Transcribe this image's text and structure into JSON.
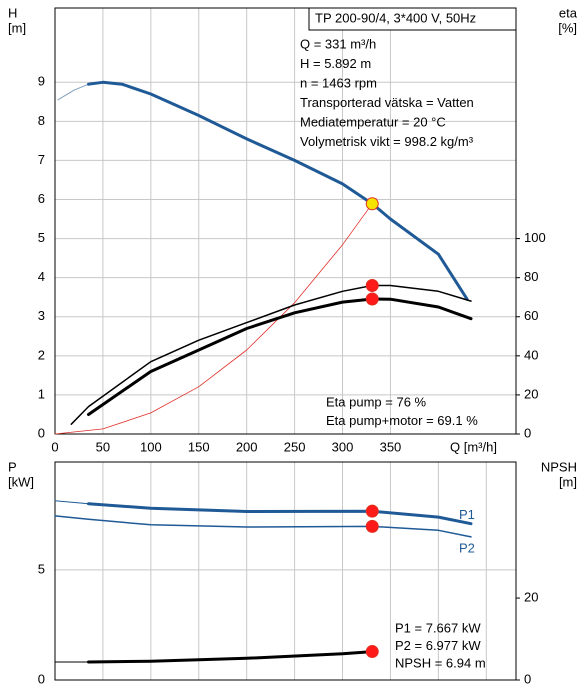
{
  "chart_data": [
    {
      "type": "line",
      "header": "TP 200-90/4, 3*400 V, 50Hz",
      "info": [
        "Q = 331 m³/h",
        "H = 5.892 m",
        "n = 1463 rpm",
        "Transporterad vätska = Vatten",
        "Mediatemperatur = 20 °C",
        "Volymetrisk vikt = 998.2 kg/m³"
      ],
      "notes": [
        "Eta pump = 76 %",
        "Eta pump+motor = 69.1 %"
      ],
      "ylabel": [
        "H",
        "[m]"
      ],
      "y2label": [
        "eta",
        "[%]"
      ],
      "xlabel": "Q [m³/h]",
      "xlim": [
        0,
        481
      ],
      "xticks": [
        0,
        50,
        100,
        150,
        200,
        250,
        300,
        350
      ],
      "show_xtick_labels": true,
      "ylim": [
        0,
        10.9
      ],
      "yticks": [
        0,
        1,
        2,
        3,
        4,
        5,
        6,
        7,
        8,
        9
      ],
      "y2lim": [
        0,
        218
      ],
      "y2ticks": [
        0,
        20,
        40,
        60,
        80,
        100
      ],
      "grid": true,
      "series": [
        {
          "style": "line",
          "color": "#7f9fbf",
          "width": 1,
          "x": [
            3,
            20,
            35
          ],
          "values": [
            8.55,
            8.8,
            8.95
          ]
        },
        {
          "style": "line",
          "color": "#1f5a96",
          "width": 3,
          "x": [
            35,
            50,
            70,
            100,
            150,
            200,
            250,
            300,
            331,
            350,
            400,
            430
          ],
          "values": [
            8.95,
            9.0,
            8.95,
            8.7,
            8.15,
            7.55,
            7.0,
            6.4,
            5.892,
            5.5,
            4.6,
            3.45
          ]
        },
        {
          "style": "line",
          "color": "#e0302a",
          "width": 0.8,
          "x": [
            0,
            50,
            100,
            150,
            200,
            250,
            300,
            331,
            335
          ],
          "values": [
            0,
            0.13,
            0.54,
            1.21,
            2.15,
            3.36,
            4.84,
            5.892,
            6.03
          ]
        },
        {
          "style": "line",
          "color": "#000000",
          "width": 1.5,
          "axis": "y2",
          "x": [
            17,
            35,
            100,
            150,
            200,
            250,
            300,
            331,
            350,
            400,
            434
          ],
          "values": [
            5,
            14,
            37,
            48,
            57,
            66,
            73,
            76,
            76,
            73,
            68
          ]
        },
        {
          "style": "line",
          "color": "#000000",
          "width": 3,
          "axis": "y2",
          "x": [
            35,
            100,
            150,
            200,
            250,
            300,
            331,
            350,
            400,
            434
          ],
          "values": [
            10,
            32,
            43,
            54,
            62,
            67.5,
            69.1,
            69,
            65,
            59
          ]
        },
        {
          "style": "point",
          "color": "#f5e400",
          "x": [
            331
          ],
          "values": [
            5.892
          ]
        },
        {
          "style": "point",
          "color": "#ff1a1a",
          "axis": "y2",
          "x": [
            331,
            331
          ],
          "values": [
            76,
            69.1
          ]
        }
      ]
    },
    {
      "type": "line",
      "info": [
        "P1 = 7.667 kW",
        "P2 = 6.977 kW",
        "NPSH = 6.94 m"
      ],
      "ylabel": [
        "P",
        "[kW]"
      ],
      "y2label": [
        "NPSH",
        "[m]"
      ],
      "xlim": [
        0,
        481
      ],
      "xticks": [
        0,
        50,
        100,
        150,
        200,
        250,
        300,
        350,
        400,
        450
      ],
      "show_xtick_labels": false,
      "ylim": [
        0,
        9.9
      ],
      "yticks": [
        0,
        5
      ],
      "y2lim": [
        0,
        53.2
      ],
      "y2ticks": [
        0,
        20
      ],
      "grid": true,
      "series": [
        {
          "style": "line",
          "color": "#1f5a96",
          "width": 1,
          "x": [
            0,
            35
          ],
          "values": [
            8.14,
            8.0
          ]
        },
        {
          "name": "P1",
          "style": "line",
          "color": "#1f5a96",
          "width": 3,
          "x": [
            35,
            100,
            200,
            331,
            400,
            434
          ],
          "values": [
            8.0,
            7.8,
            7.65,
            7.667,
            7.4,
            7.1
          ]
        },
        {
          "name": "P2",
          "style": "line",
          "color": "#1f5a96",
          "width": 1.5,
          "x": [
            0,
            35,
            100,
            200,
            331,
            400,
            434
          ],
          "values": [
            7.45,
            7.3,
            7.05,
            6.95,
            6.977,
            6.8,
            6.5
          ]
        },
        {
          "style": "line",
          "color": "#000000",
          "width": 1,
          "axis": "y2",
          "x": [
            0,
            35
          ],
          "values": [
            4.4,
            4.4
          ]
        },
        {
          "style": "line",
          "color": "#000000",
          "width": 3,
          "axis": "y2",
          "x": [
            35,
            100,
            200,
            300,
            331
          ],
          "values": [
            4.4,
            4.6,
            5.3,
            6.4,
            6.94
          ]
        },
        {
          "style": "point",
          "color": "#ff1a1a",
          "x": [
            331,
            331
          ],
          "values": [
            7.667,
            6.977
          ]
        },
        {
          "style": "point",
          "color": "#ff1a1a",
          "axis": "y2",
          "x": [
            331
          ],
          "values": [
            6.94
          ]
        }
      ]
    }
  ]
}
